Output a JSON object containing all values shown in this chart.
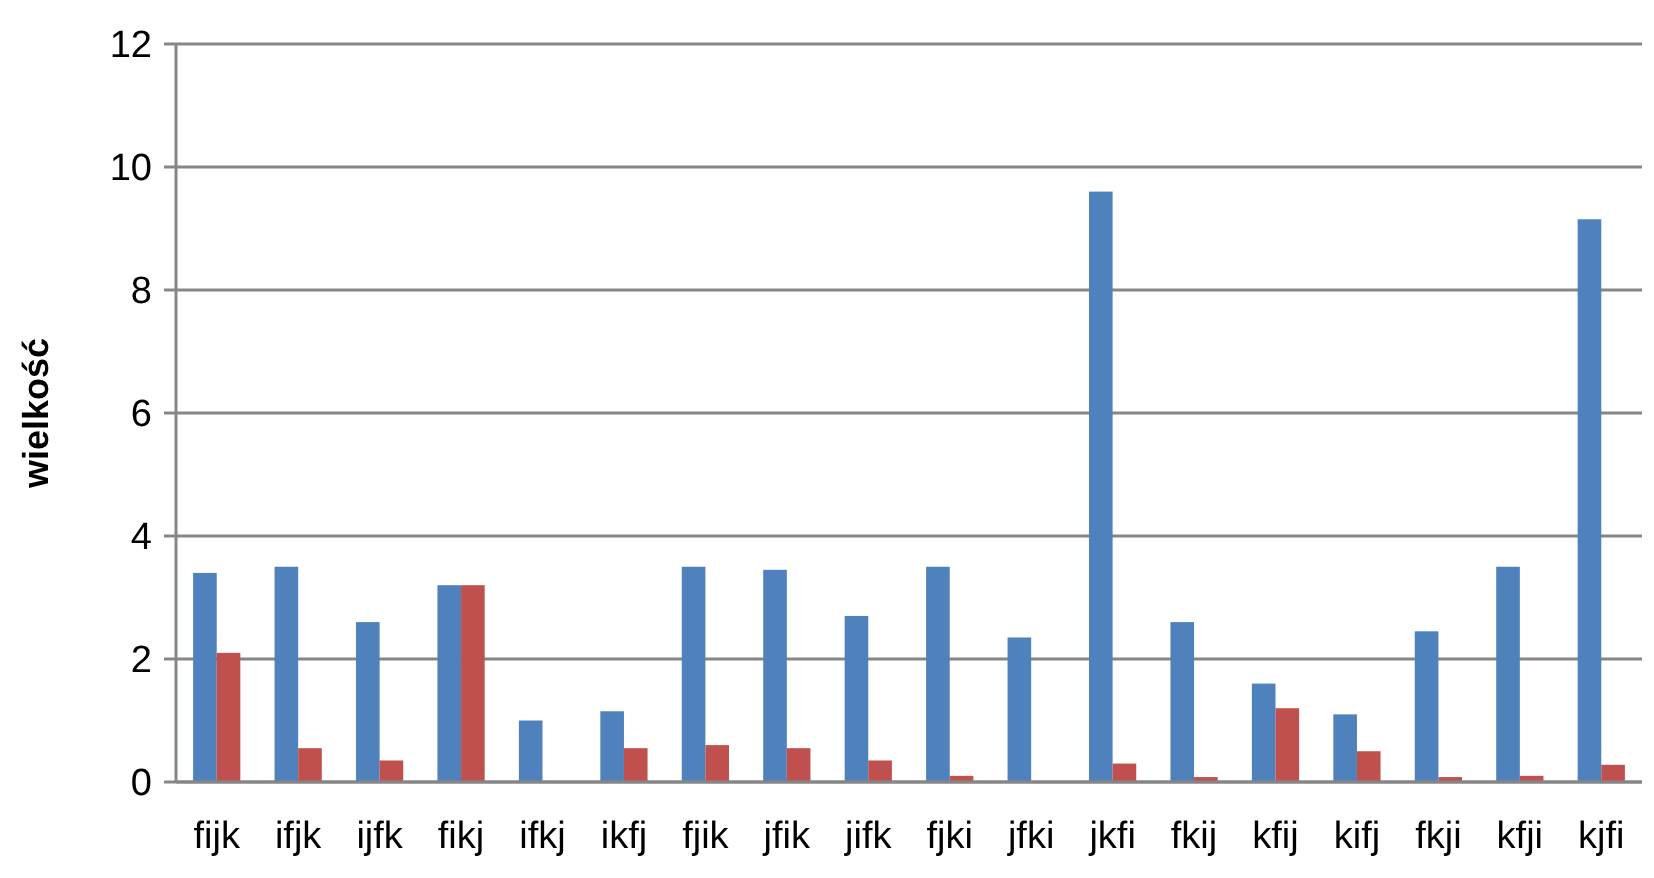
{
  "chart_data": {
    "type": "bar",
    "ylabel": "wielkość",
    "categories": [
      "fijk",
      "ifjk",
      "ijfk",
      "fikj",
      "ifkj",
      "ikfj",
      "fjik",
      "jfik",
      "jifk",
      "fjki",
      "jfki",
      "jkfi",
      "fkij",
      "kfij",
      "kifj",
      "fkji",
      "kfji",
      "kjfi"
    ],
    "series": [
      {
        "color": "#4f81bd",
        "values": [
          3.4,
          3.5,
          2.6,
          3.2,
          1.0,
          1.15,
          3.5,
          3.45,
          2.7,
          3.5,
          2.35,
          9.6,
          2.6,
          1.6,
          1.1,
          2.45,
          3.5,
          9.15
        ]
      },
      {
        "color": "#c0504d",
        "values": [
          2.1,
          0.55,
          0.35,
          3.2,
          null,
          0.55,
          0.6,
          0.55,
          0.35,
          0.1,
          null,
          0.3,
          0.08,
          1.2,
          0.5,
          0.08,
          0.1,
          0.28
        ]
      }
    ],
    "ylim": [
      0,
      12
    ],
    "yticks": [
      0,
      2,
      4,
      6,
      8,
      10,
      12
    ],
    "grid": "y"
  }
}
